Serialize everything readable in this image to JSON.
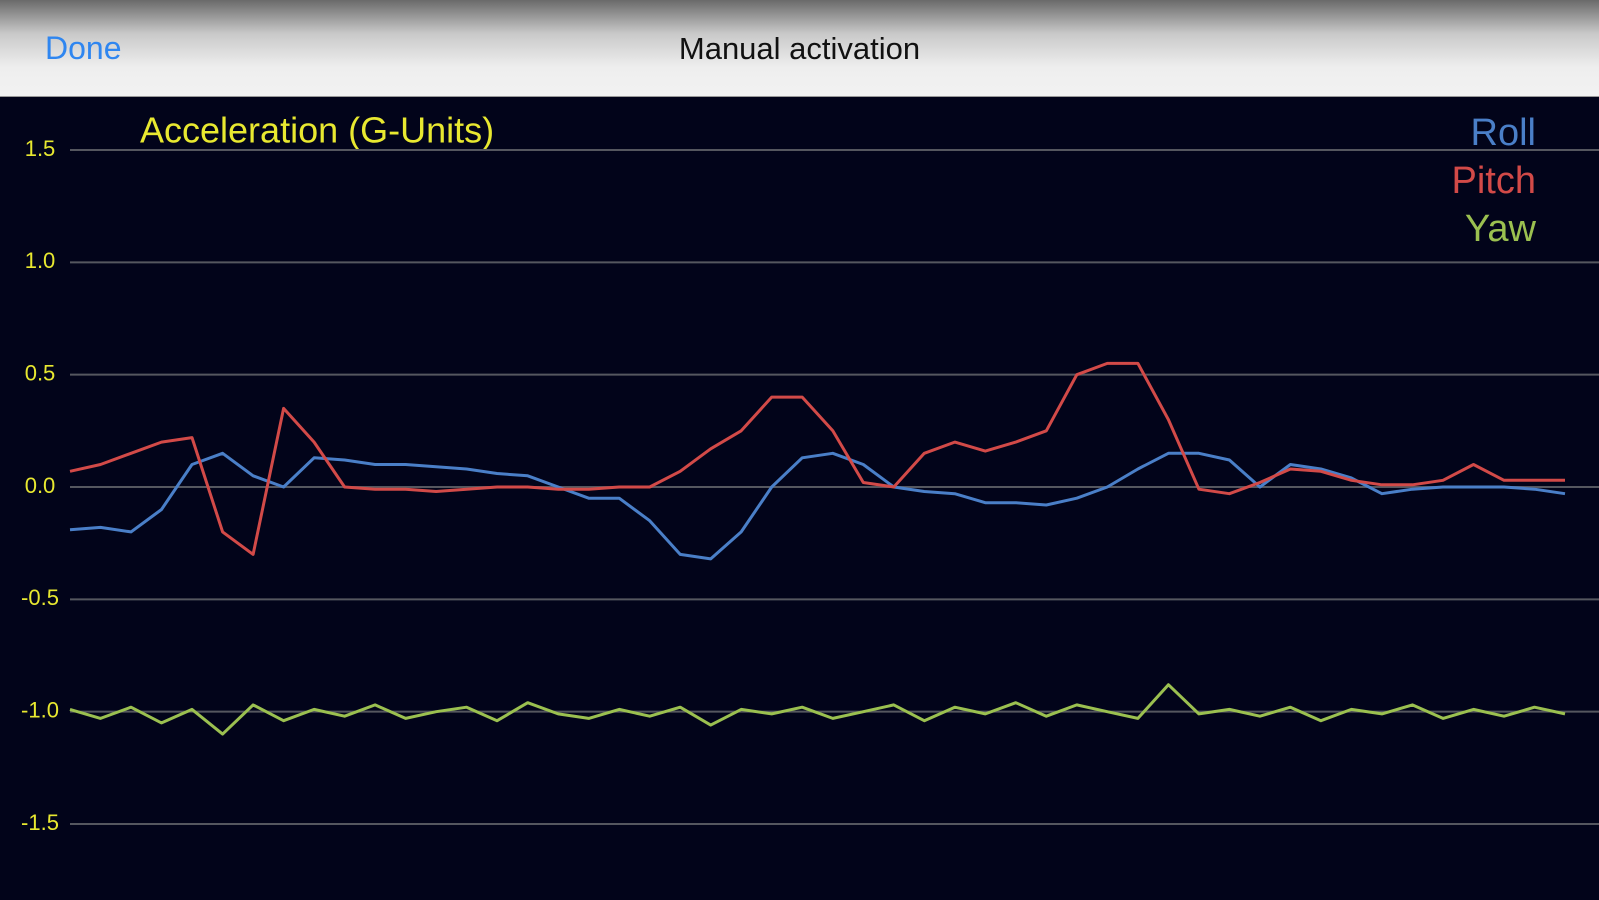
{
  "nav_bar": {
    "done": "Done",
    "title": "Manual activation"
  },
  "chart_data": {
    "type": "line",
    "title": "Acceleration (G-Units)",
    "ylim": [
      -1.5,
      1.5
    ],
    "yticks": [
      -1.5,
      {
        "value": -1,
        "label": "-1.0"
      },
      -0.5,
      {
        "value": 0,
        "label": "0.0"
      },
      0.5,
      {
        "value": 1,
        "label": "1.0"
      },
      1.5
    ],
    "grid": true,
    "legend": "top-right",
    "series": [
      {
        "name": "Roll",
        "color": "#4a7fc8",
        "values": [
          -0.19,
          -0.18,
          -0.2,
          -0.1,
          0.1,
          0.15,
          0.05,
          0.0,
          0.13,
          0.12,
          0.1,
          0.1,
          0.09,
          0.08,
          0.06,
          0.05,
          0.0,
          -0.05,
          -0.05,
          -0.15,
          -0.3,
          -0.32,
          -0.2,
          0.0,
          0.13,
          0.15,
          0.1,
          0.0,
          -0.02,
          -0.03,
          -0.07,
          -0.07,
          -0.08,
          -0.05,
          0.0,
          0.08,
          0.15,
          0.15,
          0.12,
          0.0,
          0.1,
          0.08,
          0.04,
          -0.03,
          -0.01,
          0.0,
          0.0,
          0.0,
          -0.01,
          -0.03
        ]
      },
      {
        "name": "Pitch",
        "color": "#d24a48",
        "values": [
          0.07,
          0.1,
          0.15,
          0.2,
          0.22,
          -0.2,
          -0.3,
          0.35,
          0.2,
          0.0,
          -0.01,
          -0.01,
          -0.02,
          -0.01,
          0.0,
          0.0,
          -0.01,
          -0.01,
          0.0,
          0.0,
          0.07,
          0.17,
          0.25,
          0.4,
          0.4,
          0.25,
          0.02,
          0.0,
          0.15,
          0.2,
          0.16,
          0.2,
          0.25,
          0.5,
          0.55,
          0.55,
          0.3,
          -0.01,
          -0.03,
          0.02,
          0.08,
          0.07,
          0.03,
          0.01,
          0.01,
          0.03,
          0.1,
          0.03,
          0.03,
          0.03
        ]
      },
      {
        "name": "Yaw",
        "color": "#9bc050",
        "values": [
          -0.99,
          -1.03,
          -0.98,
          -1.05,
          -0.99,
          -1.1,
          -0.97,
          -1.04,
          -0.99,
          -1.02,
          -0.97,
          -1.03,
          -1.0,
          -0.98,
          -1.04,
          -0.96,
          -1.01,
          -1.03,
          -0.99,
          -1.02,
          -0.98,
          -1.06,
          -0.99,
          -1.01,
          -0.98,
          -1.03,
          -1.0,
          -0.97,
          -1.04,
          -0.98,
          -1.01,
          -0.96,
          -1.02,
          -0.97,
          -1.0,
          -1.03,
          -0.88,
          -1.01,
          -0.99,
          -1.02,
          -0.98,
          -1.04,
          -0.99,
          -1.01,
          -0.97,
          -1.03,
          -0.99,
          -1.02,
          -0.98,
          -1.01
        ]
      }
    ]
  }
}
